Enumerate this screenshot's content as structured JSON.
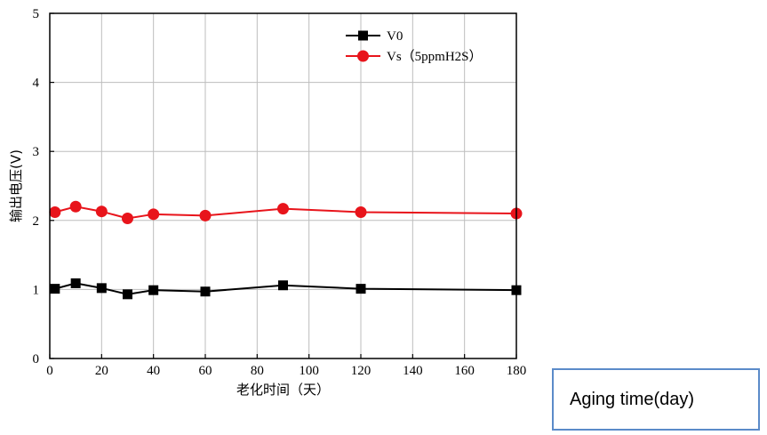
{
  "chart_data": {
    "type": "line",
    "xlabel": "老化时间（天）",
    "ylabel": "输出电压(V)",
    "xlim": [
      0,
      180
    ],
    "ylim": [
      0,
      5
    ],
    "xticks": [
      0,
      20,
      40,
      60,
      80,
      100,
      120,
      140,
      160,
      180
    ],
    "yticks": [
      0,
      1,
      2,
      3,
      4,
      5
    ],
    "grid": true,
    "legend_position": "top-right",
    "series": [
      {
        "name": "V0",
        "color": "#000000",
        "marker": "square",
        "x": [
          2,
          10,
          20,
          30,
          40,
          60,
          90,
          120,
          180
        ],
        "y": [
          1.01,
          1.09,
          1.02,
          0.93,
          0.99,
          0.97,
          1.06,
          1.01,
          0.99
        ]
      },
      {
        "name": "Vs（5ppmH2S）",
        "color": "#e8141b",
        "marker": "circle",
        "x": [
          2,
          10,
          20,
          30,
          40,
          60,
          90,
          120,
          180
        ],
        "y": [
          2.12,
          2.2,
          2.13,
          2.03,
          2.09,
          2.07,
          2.17,
          2.12,
          2.1
        ]
      }
    ]
  },
  "annotation": {
    "label": "Aging time(day)"
  }
}
